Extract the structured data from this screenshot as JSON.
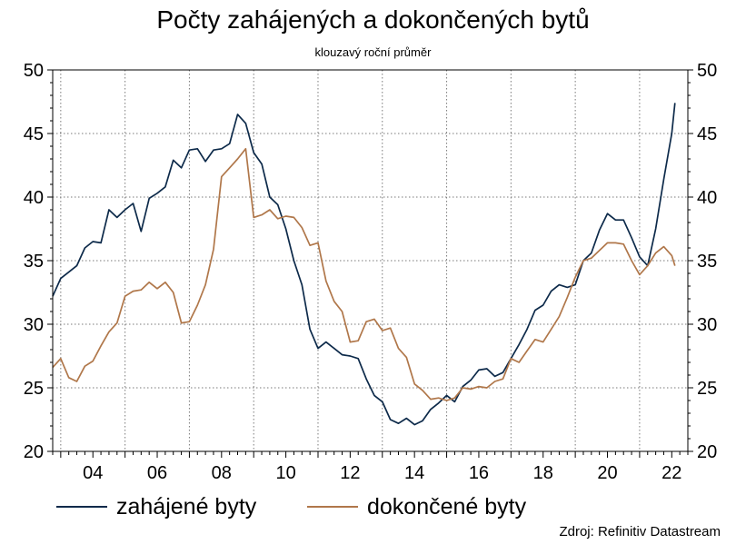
{
  "chart_data": {
    "type": "line",
    "title": "Počty zahájených a dokončených bytů",
    "subtitle": "klouzavý roční průměr",
    "xlim": [
      2002.75,
      2022.5
    ],
    "ylim": [
      20,
      50
    ],
    "yticks": [
      20,
      25,
      30,
      35,
      40,
      45,
      50
    ],
    "xticks": [
      {
        "value": 2004,
        "label": "04"
      },
      {
        "value": 2006,
        "label": "06"
      },
      {
        "value": 2008,
        "label": "08"
      },
      {
        "value": 2010,
        "label": "10"
      },
      {
        "value": 2012,
        "label": "12"
      },
      {
        "value": 2014,
        "label": "14"
      },
      {
        "value": 2016,
        "label": "16"
      },
      {
        "value": 2018,
        "label": "18"
      },
      {
        "value": 2020,
        "label": "20"
      },
      {
        "value": 2022,
        "label": "22"
      }
    ],
    "grid": true,
    "legend_position": "bottom",
    "series": [
      {
        "name": "zahájené byty",
        "color": "#0d2a4a",
        "x": [
          2002.75,
          2003.0,
          2003.25,
          2003.5,
          2003.75,
          2004.0,
          2004.25,
          2004.5,
          2004.75,
          2005.0,
          2005.25,
          2005.5,
          2005.75,
          2006.0,
          2006.25,
          2006.5,
          2006.75,
          2007.0,
          2007.25,
          2007.5,
          2007.75,
          2008.0,
          2008.25,
          2008.5,
          2008.75,
          2009.0,
          2009.25,
          2009.5,
          2009.75,
          2010.0,
          2010.25,
          2010.5,
          2010.75,
          2011.0,
          2011.25,
          2011.5,
          2011.75,
          2012.0,
          2012.25,
          2012.5,
          2012.75,
          2013.0,
          2013.25,
          2013.5,
          2013.75,
          2014.0,
          2014.25,
          2014.5,
          2014.75,
          2015.0,
          2015.25,
          2015.5,
          2015.75,
          2016.0,
          2016.25,
          2016.5,
          2016.75,
          2017.0,
          2017.25,
          2017.5,
          2017.75,
          2018.0,
          2018.25,
          2018.5,
          2018.75,
          2019.0,
          2019.25,
          2019.5,
          2019.75,
          2020.0,
          2020.25,
          2020.5,
          2020.75,
          2021.0,
          2021.25,
          2021.5,
          2021.75,
          2022.0,
          2022.1
        ],
        "values": [
          32.2,
          33.6,
          34.1,
          34.6,
          36.0,
          36.5,
          36.4,
          39.0,
          38.4,
          39.0,
          39.5,
          37.3,
          39.9,
          40.3,
          40.8,
          42.9,
          42.3,
          43.7,
          43.8,
          42.8,
          43.7,
          43.8,
          44.2,
          46.5,
          45.8,
          43.5,
          42.6,
          40.0,
          39.4,
          37.5,
          35.0,
          33.1,
          29.6,
          28.1,
          28.6,
          28.1,
          27.6,
          27.5,
          27.3,
          25.7,
          24.4,
          23.9,
          22.5,
          22.2,
          22.6,
          22.1,
          22.4,
          23.3,
          23.8,
          24.4,
          23.9,
          25.1,
          25.6,
          26.4,
          26.5,
          25.9,
          26.2,
          27.3,
          28.4,
          29.6,
          31.1,
          31.5,
          32.6,
          33.1,
          32.9,
          33.1,
          35.0,
          35.6,
          37.4,
          38.7,
          38.2,
          38.2,
          36.8,
          35.3,
          34.6,
          37.5,
          41.4,
          45.0,
          47.4
        ]
      },
      {
        "name": "dokončené byty",
        "color": "#b0774a",
        "x": [
          2002.75,
          2003.0,
          2003.25,
          2003.5,
          2003.75,
          2004.0,
          2004.25,
          2004.5,
          2004.75,
          2005.0,
          2005.25,
          2005.5,
          2005.75,
          2006.0,
          2006.25,
          2006.5,
          2006.75,
          2007.0,
          2007.25,
          2007.5,
          2007.75,
          2008.0,
          2008.25,
          2008.5,
          2008.75,
          2009.0,
          2009.25,
          2009.5,
          2009.75,
          2010.0,
          2010.25,
          2010.5,
          2010.75,
          2011.0,
          2011.25,
          2011.5,
          2011.75,
          2012.0,
          2012.25,
          2012.5,
          2012.75,
          2013.0,
          2013.25,
          2013.5,
          2013.75,
          2014.0,
          2014.25,
          2014.5,
          2014.75,
          2015.0,
          2015.25,
          2015.5,
          2015.75,
          2016.0,
          2016.25,
          2016.5,
          2016.75,
          2017.0,
          2017.25,
          2017.5,
          2017.75,
          2018.0,
          2018.25,
          2018.5,
          2018.75,
          2019.0,
          2019.25,
          2019.5,
          2019.75,
          2020.0,
          2020.25,
          2020.5,
          2020.75,
          2021.0,
          2021.25,
          2021.5,
          2021.75,
          2022.0,
          2022.1
        ],
        "values": [
          26.6,
          27.3,
          25.8,
          25.5,
          26.7,
          27.1,
          28.3,
          29.4,
          30.1,
          32.2,
          32.6,
          32.7,
          33.3,
          32.8,
          33.3,
          32.5,
          30.1,
          30.2,
          31.5,
          33.1,
          35.9,
          41.6,
          42.3,
          43.0,
          43.8,
          38.4,
          38.6,
          39.0,
          38.3,
          38.5,
          38.4,
          37.6,
          36.2,
          36.4,
          33.4,
          31.8,
          31.0,
          28.6,
          28.7,
          30.2,
          30.4,
          29.5,
          29.7,
          28.1,
          27.4,
          25.3,
          24.8,
          24.1,
          24.2,
          24.0,
          24.2,
          25.0,
          24.9,
          25.1,
          25.0,
          25.5,
          25.7,
          27.3,
          27.0,
          27.9,
          28.8,
          28.6,
          29.6,
          30.6,
          32.1,
          33.7,
          35.0,
          35.2,
          35.8,
          36.4,
          36.4,
          36.3,
          35.0,
          33.9,
          34.6,
          35.6,
          36.1,
          35.4,
          34.6
        ]
      }
    ]
  },
  "source": "Zdroj: Refinitiv Datastream"
}
